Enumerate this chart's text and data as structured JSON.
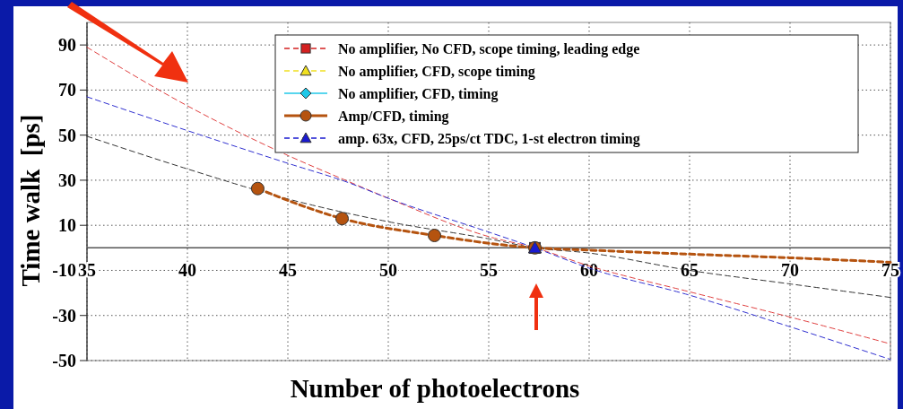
{
  "chart_data": {
    "type": "line",
    "xlabel": "Number of photoelectrons",
    "ylabel": "Time walk  [ps]",
    "xlim": [
      35,
      75
    ],
    "ylim": [
      -50,
      100
    ],
    "xticks": [
      35,
      40,
      45,
      50,
      55,
      60,
      65,
      70,
      75
    ],
    "yticks": [
      -50,
      -30,
      -10,
      10,
      30,
      50,
      70,
      90
    ],
    "grid": true,
    "legend": "top right",
    "series": [
      {
        "color": "#e04040",
        "line_style": "dashed",
        "marker": "none",
        "x": [
          35,
          40,
          45,
          48,
          50,
          55,
          57.3,
          60,
          65,
          70,
          75
        ],
        "values": [
          89,
          63,
          41,
          29.5,
          22,
          5,
          0,
          -8,
          -19.5,
          -30.7,
          -42.6
        ]
      },
      {
        "color": "#333333",
        "line_style": "dashed",
        "marker": "none",
        "x": [
          35,
          40,
          45,
          50,
          55,
          57.3,
          60,
          65,
          70,
          75
        ],
        "values": [
          49.5,
          35,
          21.7,
          11.6,
          4,
          0,
          -2.3,
          -10,
          -16,
          -22
        ]
      },
      {
        "color": "#3030d0",
        "line_style": "dashed",
        "marker": "none",
        "x": [
          35,
          40,
          45,
          48,
          50,
          55,
          57.3,
          60,
          65,
          70,
          75
        ],
        "values": [
          67,
          52,
          37.5,
          29,
          22,
          7,
          0,
          -9,
          -21,
          -35,
          -49.5
        ]
      },
      {
        "color": "#b5530f",
        "line_style": "dashed",
        "marker": "none",
        "x": [
          43.5,
          47.7,
          52.3,
          57.3,
          60,
          65,
          70,
          75
        ],
        "values": [
          26.3,
          13,
          5.5,
          0,
          -1,
          -2.8,
          -4.4,
          -6.4
        ]
      },
      {
        "type": "scatter",
        "name": "No amplifier, No CFD, scope timing, leading edge",
        "color": "#d42020",
        "line_style": "dashed",
        "marker": "square",
        "x": [
          57.3
        ],
        "values": [
          0
        ]
      },
      {
        "type": "scatter",
        "name": "No amplifier, CFD, scope timing",
        "color": "#f0e020",
        "line_style": "dashed",
        "marker": "triangle",
        "x": [
          57.3
        ],
        "values": [
          0
        ]
      },
      {
        "type": "scatter",
        "name": "No amplifier, CFD, timing",
        "color": "#20c8e8",
        "line_style": "solid",
        "marker": "diamond"
      },
      {
        "type": "scatter",
        "name": "Amp/CFD, timing",
        "color": "#b5530f",
        "line_style": "solid",
        "marker": "circle",
        "x": [
          43.5,
          47.7,
          52.3,
          57.3
        ],
        "values": [
          26.3,
          13,
          5.5,
          0
        ]
      },
      {
        "type": "scatter",
        "name": "amp. 63x, CFD, 25ps/ct TDC, 1-st electron timing",
        "color": "#1a1ad0",
        "line_style": "dashed",
        "marker": "triangle",
        "x": [
          57.3
        ],
        "values": [
          0
        ]
      }
    ]
  }
}
